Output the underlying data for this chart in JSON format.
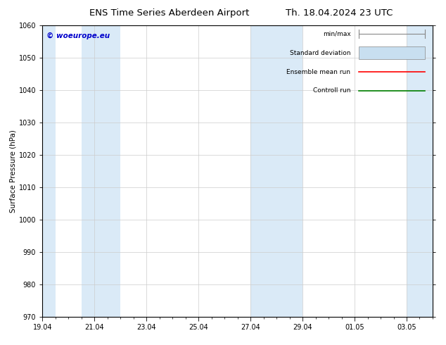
{
  "title": "ENS Time Series Aberdeen Airport",
  "title2": "Th. 18.04.2024 23 UTC",
  "ylabel": "Surface Pressure (hPa)",
  "ylim": [
    970,
    1060
  ],
  "yticks": [
    970,
    980,
    990,
    1000,
    1010,
    1020,
    1030,
    1040,
    1050,
    1060
  ],
  "xtick_labels": [
    "19.04",
    "21.04",
    "23.04",
    "25.04",
    "27.04",
    "29.04",
    "01.05",
    "03.05"
  ],
  "xtick_positions": [
    0,
    2,
    4,
    6,
    8,
    10,
    12,
    14
  ],
  "xlim": [
    0,
    15
  ],
  "shaded_bands": [
    {
      "start": 0.0,
      "end": 0.5,
      "color": "#daeaf7"
    },
    {
      "start": 1.5,
      "end": 3.0,
      "color": "#daeaf7"
    },
    {
      "start": 8.0,
      "end": 10.0,
      "color": "#daeaf7"
    },
    {
      "start": 14.0,
      "end": 15.0,
      "color": "#daeaf7"
    }
  ],
  "legend_items": [
    {
      "label": "min/max",
      "color": "#aaaaaa",
      "type": "errorbar"
    },
    {
      "label": "Standard deviation",
      "color": "#c8dff0",
      "type": "box"
    },
    {
      "label": "Ensemble mean run",
      "color": "#ff0000",
      "type": "line"
    },
    {
      "label": "Controll run",
      "color": "#008000",
      "type": "line"
    }
  ],
  "watermark": "© woeurope.eu",
  "watermark_color": "#0000cc",
  "bg_color": "#ffffff",
  "plot_bg_color": "#ffffff",
  "border_color": "#000000",
  "title_fontsize": 9.5,
  "ylabel_fontsize": 7.5,
  "tick_fontsize": 7,
  "legend_fontsize": 6.5,
  "watermark_fontsize": 7.5
}
